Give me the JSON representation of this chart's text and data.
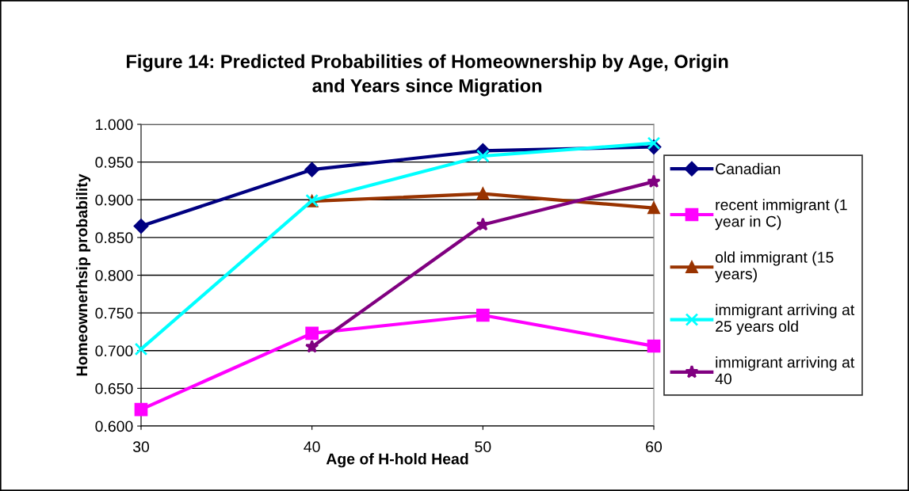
{
  "chart_data": {
    "type": "line",
    "title": "Figure 14: Predicted Probabilities of Homeownership by Age, Origin\nand Years since Migration",
    "xlabel": "Age of H-hold Head",
    "ylabel": "Homeownerhsip probability",
    "x": [
      30,
      40,
      50,
      60
    ],
    "xlim": [
      30,
      60
    ],
    "xticks": [
      30,
      40,
      50,
      60
    ],
    "ylim": [
      0.6,
      1.0
    ],
    "yticks": [
      {
        "value": 0.6,
        "label": "0.600"
      },
      {
        "value": 0.65,
        "label": "0.650"
      },
      {
        "value": 0.7,
        "label": "0.700"
      },
      {
        "value": 0.75,
        "label": "0.750"
      },
      {
        "value": 0.8,
        "label": "0.800"
      },
      {
        "value": 0.85,
        "label": "0.850"
      },
      {
        "value": 0.9,
        "label": "0.900"
      },
      {
        "value": 0.95,
        "label": "0.950"
      },
      {
        "value": 1.0,
        "label": "1.000"
      }
    ],
    "grid": "y",
    "legend": "right",
    "series": [
      {
        "name": "Canadian",
        "color": "#000080",
        "marker": "diamond",
        "values": [
          0.865,
          0.94,
          0.965,
          0.97
        ]
      },
      {
        "name": "recent immigrant (1\nyear in C)",
        "color": "#ff00ff",
        "marker": "square",
        "values": [
          0.622,
          0.723,
          0.747,
          0.706
        ]
      },
      {
        "name": "old immigrant (15\nyears)",
        "color": "#993300",
        "marker": "triangle",
        "values": [
          null,
          0.898,
          0.908,
          0.889
        ]
      },
      {
        "name": "immigrant arriving at\n25 years old",
        "color": "#00ffff",
        "marker": "cross",
        "values": [
          0.702,
          0.899,
          0.958,
          0.975
        ]
      },
      {
        "name": "immigrant arriving at\n40",
        "color": "#800080",
        "marker": "star",
        "values": [
          null,
          0.705,
          0.867,
          0.924
        ]
      }
    ]
  }
}
